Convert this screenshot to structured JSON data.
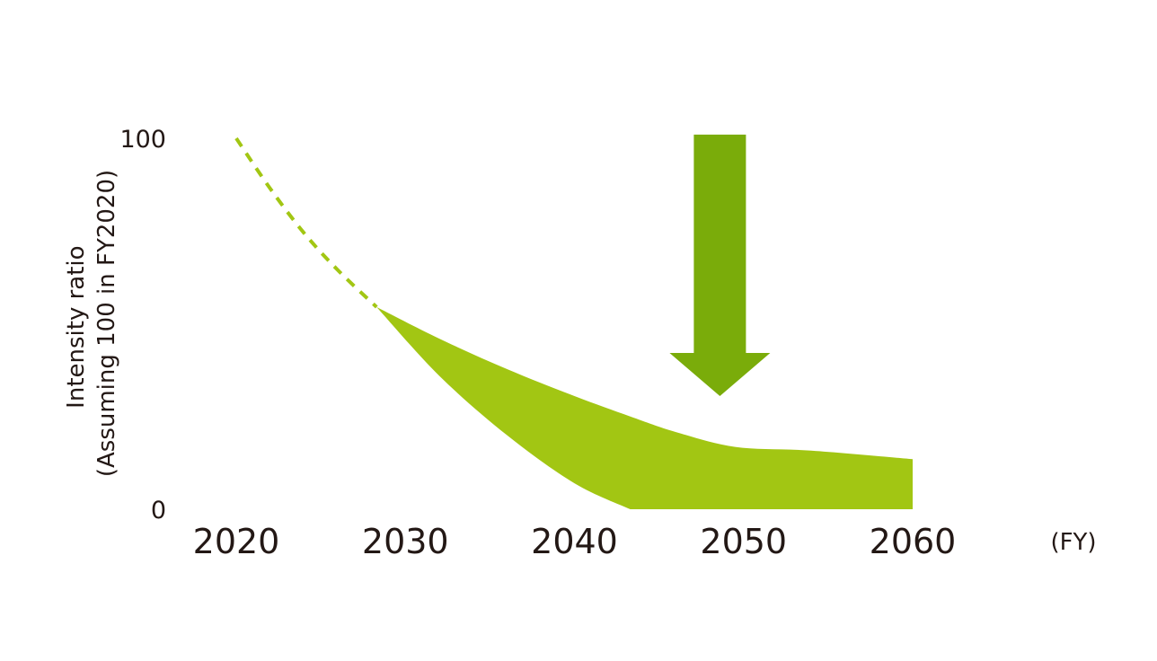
{
  "chart_data": {
    "type": "area",
    "title": "",
    "x_unit_label": "(FY)",
    "ylabel_lines": [
      "Intensity ratio",
      "(Assuming 100 in FY2020)"
    ],
    "x_ticks": [
      2020,
      2030,
      2040,
      2050,
      2060
    ],
    "y_ticks": [
      0,
      100
    ],
    "xlim": [
      2020,
      2060
    ],
    "ylim": [
      0,
      100
    ],
    "grid": false,
    "legend": "none",
    "series": [
      {
        "kind": "dashed-line",
        "color": "#a2c613",
        "x": [
          2020,
          2022,
          2024,
          2026,
          2028.3
        ],
        "y": [
          100,
          86.5,
          74.5,
          64.5,
          54.5
        ]
      },
      {
        "kind": "range-band",
        "color": "#a2c613",
        "x": [
          2028.3,
          2032,
          2036,
          2040,
          2043.3,
          2046,
          2049.5,
          2054,
          2060
        ],
        "upper": [
          54.5,
          46,
          37.8,
          30.5,
          25,
          20.8,
          16.8,
          15.8,
          13.5
        ],
        "lower": [
          54.5,
          36,
          20,
          7,
          0,
          0,
          0,
          0,
          0
        ]
      }
    ],
    "annotations": [
      {
        "kind": "down-arrow",
        "color": "#7aac0a",
        "x": 2048.6,
        "y_top": 101,
        "y_tip": 30.5
      }
    ]
  }
}
